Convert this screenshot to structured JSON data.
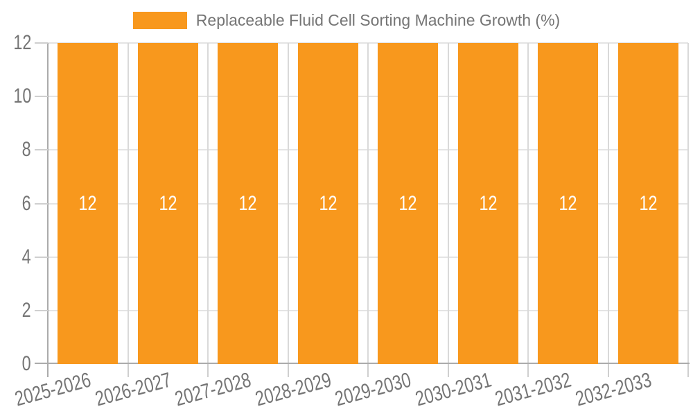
{
  "chart_data": {
    "type": "bar",
    "title": "Replaceable Fluid Cell Sorting Machine Growth (%)",
    "series_label": "Replaceable Fluid Cell Sorting Machine Growth (%)",
    "categories": [
      "2025-2026",
      "2026-2027",
      "2027-2028",
      "2028-2029",
      "2029-2030",
      "2030-2031",
      "2031-2032",
      "2032-2033"
    ],
    "values": [
      12,
      12,
      12,
      12,
      12,
      12,
      12,
      12
    ],
    "bar_value_labels": [
      "12",
      "12",
      "12",
      "12",
      "12",
      "12",
      "12",
      "12"
    ],
    "xlabel": "",
    "ylabel": "",
    "ylim": [
      0,
      12
    ],
    "y_ticks": [
      0,
      2,
      4,
      6,
      8,
      10,
      12
    ],
    "y_tick_labels": [
      "0",
      "2",
      "4",
      "6",
      "8",
      "10",
      "12"
    ],
    "grid": "horizontal and vertical gridlines on",
    "legend_position": "top-center",
    "x_label_rotation_deg": -15,
    "colors": {
      "bar_fill": "#F8981D",
      "bar_value_text": "#FFFFFF",
      "axis_label_text": "#757575",
      "legend_text": "#757575",
      "axis_line": "#ABABAB",
      "tick_line": "#CFCFCF",
      "h_gridline": "#E4E4E4",
      "v_gridline": "#D9D9D9",
      "background": "#FFFFFF"
    }
  }
}
